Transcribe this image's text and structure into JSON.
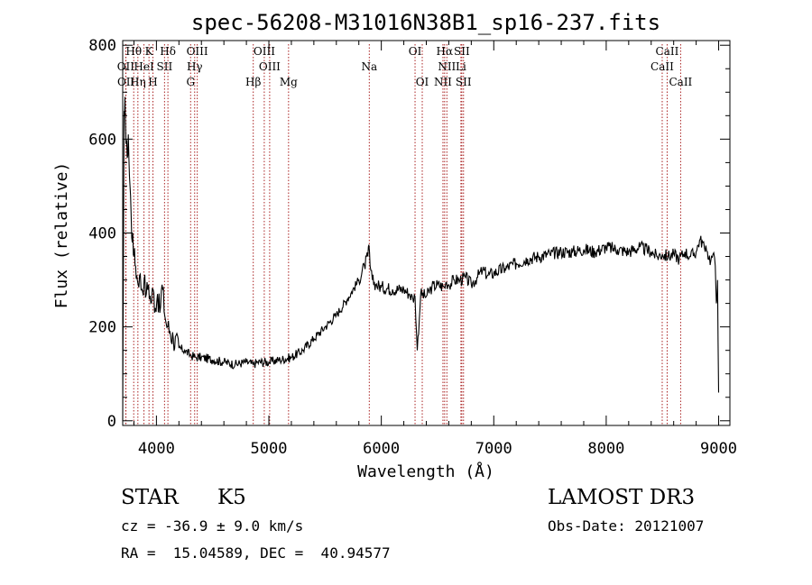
{
  "chart_data": {
    "type": "line",
    "title": "spec-56208-M31016N38B1_sp16-237.fits",
    "xlabel": "Wavelength (Å)",
    "ylabel": "Flux (relative)",
    "xlim": [
      3700,
      9100
    ],
    "ylim": [
      -10,
      810
    ],
    "xticks": [
      4000,
      5000,
      6000,
      7000,
      8000,
      9000
    ],
    "yticks": [
      0,
      200,
      400,
      600,
      800
    ],
    "series": [
      {
        "name": "spectrum",
        "x": [
          3700,
          3705,
          3712,
          3720,
          3730,
          3740,
          3750,
          3760,
          3770,
          3780,
          3790,
          3800,
          3815,
          3830,
          3850,
          3870,
          3890,
          3910,
          3930,
          3950,
          3970,
          3990,
          4010,
          4030,
          4050,
          4080,
          4100,
          4120,
          4150,
          4200,
          4250,
          4300,
          4350,
          4400,
          4500,
          4600,
          4700,
          4800,
          4860,
          4900,
          5000,
          5100,
          5200,
          5300,
          5400,
          5500,
          5600,
          5700,
          5800,
          5850,
          5880,
          5890,
          5900,
          5920,
          5950,
          6000,
          6100,
          6200,
          6250,
          6280,
          6300,
          6320,
          6350,
          6400,
          6450,
          6500,
          6560,
          6580,
          6600,
          6650,
          6700,
          6750,
          6800,
          6850,
          6900,
          6950,
          7000,
          7100,
          7200,
          7300,
          7400,
          7500,
          7600,
          7700,
          7800,
          7900,
          8000,
          8100,
          8200,
          8300,
          8400,
          8450,
          8500,
          8550,
          8600,
          8650,
          8700,
          8750,
          8800,
          8830,
          8860,
          8880,
          8900,
          8930,
          8950,
          8970,
          8980,
          8990,
          9000
        ],
        "values": [
          0,
          260,
          660,
          690,
          590,
          560,
          610,
          520,
          480,
          390,
          400,
          350,
          330,
          300,
          310,
          280,
          300,
          270,
          290,
          250,
          280,
          240,
          270,
          230,
          290,
          215,
          200,
          190,
          175,
          155,
          150,
          140,
          135,
          135,
          130,
          125,
          120,
          125,
          120,
          125,
          125,
          130,
          135,
          150,
          175,
          200,
          225,
          260,
          300,
          330,
          350,
          375,
          330,
          300,
          290,
          285,
          280,
          280,
          270,
          260,
          265,
          150,
          270,
          265,
          285,
          290,
          285,
          295,
          290,
          300,
          300,
          305,
          290,
          305,
          320,
          310,
          315,
          325,
          335,
          345,
          350,
          355,
          360,
          360,
          365,
          360,
          370,
          365,
          360,
          370,
          360,
          350,
          355,
          350,
          355,
          345,
          360,
          350,
          360,
          385,
          380,
          360,
          360,
          340,
          355,
          330,
          250,
          300,
          60
        ]
      }
    ],
    "spectral_lines": [
      {
        "label": "Hθ",
        "x": 3798,
        "row": 1
      },
      {
        "label": "K",
        "x": 3934,
        "row": 1
      },
      {
        "label": "Hδ",
        "x": 4102,
        "row": 1
      },
      {
        "label": "OIII",
        "x": 4363,
        "row": 1
      },
      {
        "label": "OIII",
        "x": 4959,
        "row": 1
      },
      {
        "label": "OI",
        "x": 6300,
        "row": 1
      },
      {
        "label": "Hα",
        "x": 6563,
        "row": 1
      },
      {
        "label": "SII",
        "x": 6716,
        "row": 1
      },
      {
        "label": "CaII",
        "x": 8542,
        "row": 1
      },
      {
        "label": "OII",
        "x": 3727,
        "row": 2
      },
      {
        "label": "HeI",
        "x": 3889,
        "row": 2
      },
      {
        "label": "SII",
        "x": 4072,
        "row": 2
      },
      {
        "label": "Hγ",
        "x": 4340,
        "row": 2
      },
      {
        "label": "OIII",
        "x": 5007,
        "row": 2
      },
      {
        "label": "Na",
        "x": 5893,
        "row": 2
      },
      {
        "label": "NII",
        "x": 6583,
        "row": 2
      },
      {
        "label": "Li",
        "x": 6708,
        "row": 2
      },
      {
        "label": "CaII",
        "x": 8498,
        "row": 2
      },
      {
        "label": "OII",
        "x": 3729,
        "row": 3
      },
      {
        "label": "Hη",
        "x": 3835,
        "row": 3
      },
      {
        "label": "H",
        "x": 3969,
        "row": 3
      },
      {
        "label": "G",
        "x": 4304,
        "row": 3
      },
      {
        "label": "Hβ",
        "x": 4861,
        "row": 3
      },
      {
        "label": "Mg",
        "x": 5175,
        "row": 3
      },
      {
        "label": "OI",
        "x": 6364,
        "row": 3
      },
      {
        "label": "NII",
        "x": 6548,
        "row": 3
      },
      {
        "label": "SII",
        "x": 6731,
        "row": 3
      },
      {
        "label": "CaII",
        "x": 8662,
        "row": 3
      }
    ]
  },
  "info": {
    "class": "STAR",
    "subclass": "K5",
    "survey": "LAMOST DR3",
    "cz": "cz = -36.9 ± 9.0 km/s",
    "obs_date": "Obs-Date: 20121007",
    "coords": "RA =  15.04589, DEC =  40.94577"
  },
  "colors": {
    "spectrum": "#000000",
    "line_marker": "#aa2222"
  }
}
